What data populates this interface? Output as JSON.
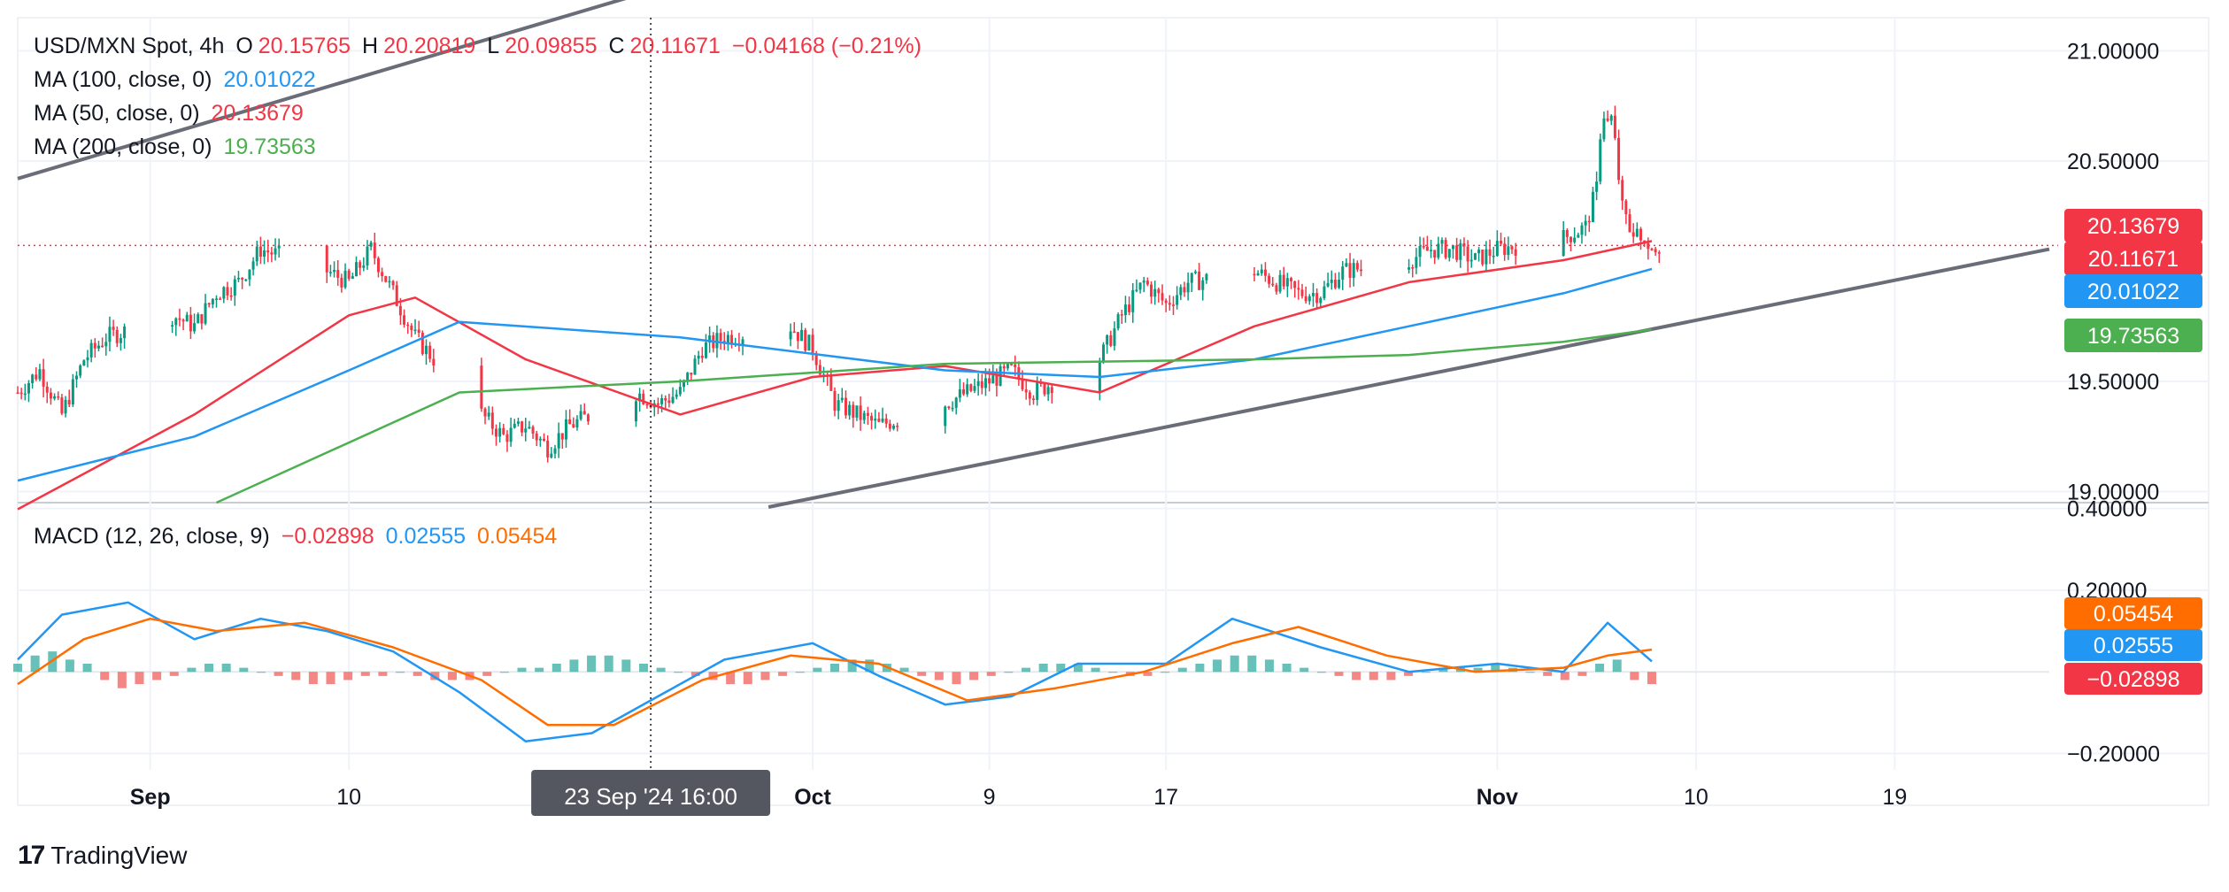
{
  "header": {
    "symbol": "USD/MXN Spot, 4h",
    "open_label": "O",
    "open": "20.15765",
    "high_label": "H",
    "high": "20.20819",
    "low_label": "L",
    "low": "20.09855",
    "close_label": "C",
    "close": "20.11671",
    "change": "−0.04168 (−0.21%)"
  },
  "ma_legend": [
    {
      "label": "MA (100, close, 0)",
      "value": "20.01022",
      "color": "#2196f3"
    },
    {
      "label": "MA (50, close, 0)",
      "value": "20.13679",
      "color": "#f23645"
    },
    {
      "label": "MA (200, close, 0)",
      "value": "19.73563",
      "color": "#4caf50"
    }
  ],
  "macd_legend": {
    "label": "MACD (12, 26, close, 9)",
    "hist": "−0.02898",
    "hist_color": "#f23645",
    "macd": "0.02555",
    "macd_color": "#2196f3",
    "signal": "0.05454",
    "signal_color": "#ff6d00"
  },
  "price_badges": [
    {
      "value": "20.13679",
      "color": "#f23645",
      "price": 20.13679
    },
    {
      "value": "20.11671",
      "color": "#f23645",
      "price": 20.11671
    },
    {
      "value": "20.01022",
      "color": "#2196f3",
      "price": 20.01022
    },
    {
      "value": "19.73563",
      "color": "#4caf50",
      "price": 19.73563
    }
  ],
  "macd_badges": [
    {
      "value": "0.05454",
      "color": "#ff6d00",
      "v": 0.05454
    },
    {
      "value": "0.02555",
      "color": "#2196f3",
      "v": 0.02555
    },
    {
      "value": "−0.02898",
      "color": "#f23645",
      "v": -0.02898
    }
  ],
  "crosshair_label": "23 Sep '24   16:00",
  "footer": {
    "brand": "TradingView",
    "mark": "17"
  },
  "colors": {
    "up": "#089981",
    "down": "#f23645",
    "grid": "#f0f3fa",
    "trend": "#6a6d78"
  },
  "chart_data": {
    "type": "candlestick",
    "price_axis": {
      "range": [
        18.95,
        21.15
      ],
      "ticks": [
        {
          "v": 21.0,
          "label": "21.00000"
        },
        {
          "v": 20.5,
          "label": "20.50000"
        },
        {
          "v": 19.5,
          "label": "19.50000"
        },
        {
          "v": 19.0,
          "label": "19.00000"
        }
      ]
    },
    "macd_axis": {
      "range": [
        -0.24,
        0.41
      ],
      "ticks": [
        {
          "v": 0.4,
          "label": "0.40000"
        },
        {
          "v": 0.2,
          "label": "0.20000"
        },
        {
          "v": -0.2,
          "label": "−0.20000"
        }
      ]
    },
    "time_axis": {
      "start": "2024-08-26",
      "end": "2024-11-26",
      "ticks": [
        {
          "date": "2024-09-01",
          "label": "Sep",
          "bold": true
        },
        {
          "date": "2024-09-10",
          "label": "10",
          "bold": false
        },
        {
          "date": "2024-10-01",
          "label": "Oct",
          "bold": true
        },
        {
          "date": "2024-10-09",
          "label": "9",
          "bold": false
        },
        {
          "date": "2024-10-17",
          "label": "17",
          "bold": false
        },
        {
          "date": "2024-11-01",
          "label": "Nov",
          "bold": true
        },
        {
          "date": "2024-11-10",
          "label": "10",
          "bold": false
        },
        {
          "date": "2024-11-19",
          "label": "19",
          "bold": false
        }
      ]
    },
    "close_path": [
      [
        "2024-08-26",
        19.45
      ],
      [
        "2024-08-27",
        19.55
      ],
      [
        "2024-08-28",
        19.35
      ],
      [
        "2024-08-29",
        19.6
      ],
      [
        "2024-08-30",
        19.7
      ],
      [
        "2024-09-02",
        19.8
      ],
      [
        "2024-09-03",
        19.75
      ],
      [
        "2024-09-04",
        19.9
      ],
      [
        "2024-09-05",
        19.95
      ],
      [
        "2024-09-06",
        20.1
      ],
      [
        "2024-09-09",
        20.0
      ],
      [
        "2024-09-10",
        19.95
      ],
      [
        "2024-09-11",
        20.1
      ],
      [
        "2024-09-12",
        19.9
      ],
      [
        "2024-09-13",
        19.7
      ],
      [
        "2024-09-16",
        19.35
      ],
      [
        "2024-09-17",
        19.25
      ],
      [
        "2024-09-18",
        19.3
      ],
      [
        "2024-09-19",
        19.2
      ],
      [
        "2024-09-20",
        19.3
      ],
      [
        "2024-09-23",
        19.45
      ],
      [
        "2024-09-24",
        19.4
      ],
      [
        "2024-09-25",
        19.45
      ],
      [
        "2024-09-26",
        19.65
      ],
      [
        "2024-09-27",
        19.7
      ],
      [
        "2024-09-30",
        19.75
      ],
      [
        "2024-10-01",
        19.65
      ],
      [
        "2024-10-02",
        19.4
      ],
      [
        "2024-10-03",
        19.35
      ],
      [
        "2024-10-04",
        19.3
      ],
      [
        "2024-10-07",
        19.4
      ],
      [
        "2024-10-08",
        19.45
      ],
      [
        "2024-10-09",
        19.5
      ],
      [
        "2024-10-10",
        19.55
      ],
      [
        "2024-10-11",
        19.45
      ],
      [
        "2024-10-14",
        19.6
      ],
      [
        "2024-10-15",
        19.8
      ],
      [
        "2024-10-16",
        19.95
      ],
      [
        "2024-10-17",
        19.85
      ],
      [
        "2024-10-18",
        19.95
      ],
      [
        "2024-10-21",
        20.0
      ],
      [
        "2024-10-22",
        19.95
      ],
      [
        "2024-10-23",
        19.9
      ],
      [
        "2024-10-24",
        19.9
      ],
      [
        "2024-10-25",
        20.0
      ],
      [
        "2024-10-28",
        20.05
      ],
      [
        "2024-10-29",
        20.1
      ],
      [
        "2024-10-30",
        20.1
      ],
      [
        "2024-10-31",
        20.05
      ],
      [
        "2024-11-01",
        20.1
      ],
      [
        "2024-11-04",
        20.15
      ],
      [
        "2024-11-05",
        20.2
      ],
      [
        "2024-11-06",
        20.55
      ],
      [
        "2024-11-07",
        20.2
      ],
      [
        "2024-11-08",
        20.12
      ]
    ],
    "ma_series": [
      {
        "color": "#f23645",
        "points": [
          [
            "2024-08-26",
            18.92
          ],
          [
            "2024-09-03",
            19.35
          ],
          [
            "2024-09-10",
            19.8
          ],
          [
            "2024-09-13",
            19.88
          ],
          [
            "2024-09-18",
            19.6
          ],
          [
            "2024-09-25",
            19.35
          ],
          [
            "2024-10-01",
            19.52
          ],
          [
            "2024-10-07",
            19.57
          ],
          [
            "2024-10-14",
            19.45
          ],
          [
            "2024-10-21",
            19.75
          ],
          [
            "2024-10-28",
            19.95
          ],
          [
            "2024-11-04",
            20.05
          ],
          [
            "2024-11-08",
            20.13679
          ]
        ]
      },
      {
        "color": "#2196f3",
        "points": [
          [
            "2024-08-26",
            19.05
          ],
          [
            "2024-09-03",
            19.25
          ],
          [
            "2024-09-10",
            19.55
          ],
          [
            "2024-09-15",
            19.77
          ],
          [
            "2024-09-25",
            19.7
          ],
          [
            "2024-10-07",
            19.55
          ],
          [
            "2024-10-14",
            19.52
          ],
          [
            "2024-10-21",
            19.6
          ],
          [
            "2024-10-28",
            19.75
          ],
          [
            "2024-11-04",
            19.9
          ],
          [
            "2024-11-08",
            20.01022
          ]
        ]
      },
      {
        "color": "#4caf50",
        "points": [
          [
            "2024-09-04",
            18.95
          ],
          [
            "2024-09-15",
            19.45
          ],
          [
            "2024-09-25",
            19.5
          ],
          [
            "2024-10-07",
            19.58
          ],
          [
            "2024-10-21",
            19.6
          ],
          [
            "2024-10-28",
            19.62
          ],
          [
            "2024-11-04",
            19.68
          ],
          [
            "2024-11-08",
            19.73563
          ]
        ]
      }
    ],
    "macd_lines": [
      {
        "color": "#2196f3",
        "points": [
          [
            "2024-08-26",
            0.03
          ],
          [
            "2024-08-28",
            0.14
          ],
          [
            "2024-08-31",
            0.17
          ],
          [
            "2024-09-03",
            0.08
          ],
          [
            "2024-09-06",
            0.13
          ],
          [
            "2024-09-09",
            0.1
          ],
          [
            "2024-09-12",
            0.05
          ],
          [
            "2024-09-15",
            -0.05
          ],
          [
            "2024-09-18",
            -0.17
          ],
          [
            "2024-09-21",
            -0.15
          ],
          [
            "2024-09-24",
            -0.06
          ],
          [
            "2024-09-27",
            0.03
          ],
          [
            "2024-10-01",
            0.07
          ],
          [
            "2024-10-04",
            -0.01
          ],
          [
            "2024-10-07",
            -0.08
          ],
          [
            "2024-10-10",
            -0.06
          ],
          [
            "2024-10-13",
            0.02
          ],
          [
            "2024-10-17",
            0.02
          ],
          [
            "2024-10-20",
            0.13
          ],
          [
            "2024-10-24",
            0.06
          ],
          [
            "2024-10-28",
            0.0
          ],
          [
            "2024-11-01",
            0.02
          ],
          [
            "2024-11-04",
            0.0
          ],
          [
            "2024-11-06",
            0.12
          ],
          [
            "2024-11-08",
            0.02555
          ]
        ]
      },
      {
        "color": "#ff6d00",
        "points": [
          [
            "2024-08-26",
            -0.03
          ],
          [
            "2024-08-29",
            0.08
          ],
          [
            "2024-09-01",
            0.13
          ],
          [
            "2024-09-04",
            0.1
          ],
          [
            "2024-09-08",
            0.12
          ],
          [
            "2024-09-12",
            0.06
          ],
          [
            "2024-09-16",
            -0.02
          ],
          [
            "2024-09-19",
            -0.13
          ],
          [
            "2024-09-22",
            -0.13
          ],
          [
            "2024-09-26",
            -0.02
          ],
          [
            "2024-09-30",
            0.04
          ],
          [
            "2024-10-04",
            0.02
          ],
          [
            "2024-10-08",
            -0.07
          ],
          [
            "2024-10-12",
            -0.04
          ],
          [
            "2024-10-16",
            0.0
          ],
          [
            "2024-10-20",
            0.07
          ],
          [
            "2024-10-23",
            0.11
          ],
          [
            "2024-10-27",
            0.04
          ],
          [
            "2024-10-31",
            0.0
          ],
          [
            "2024-11-04",
            0.01
          ],
          [
            "2024-11-06",
            0.04
          ],
          [
            "2024-11-08",
            0.05454
          ]
        ]
      }
    ],
    "macd_hist": [
      0.02,
      0.04,
      0.05,
      0.03,
      0.02,
      -0.02,
      -0.04,
      -0.03,
      -0.02,
      -0.01,
      0.01,
      0.02,
      0.02,
      0.01,
      0.0,
      -0.01,
      -0.02,
      -0.03,
      -0.03,
      -0.02,
      -0.01,
      -0.01,
      0.0,
      -0.01,
      -0.02,
      -0.02,
      -0.02,
      -0.01,
      0.0,
      0.01,
      0.01,
      0.02,
      0.03,
      0.04,
      0.04,
      0.03,
      0.02,
      0.01,
      0.0,
      -0.01,
      -0.02,
      -0.03,
      -0.03,
      -0.02,
      -0.01,
      0.0,
      0.01,
      0.02,
      0.03,
      0.03,
      0.02,
      0.01,
      -0.01,
      -0.02,
      -0.03,
      -0.02,
      -0.01,
      0.0,
      0.01,
      0.02,
      0.02,
      0.02,
      0.01,
      0.0,
      -0.01,
      -0.01,
      0.0,
      0.01,
      0.02,
      0.03,
      0.04,
      0.04,
      0.03,
      0.02,
      0.01,
      0.0,
      -0.01,
      -0.02,
      -0.02,
      -0.02,
      -0.01,
      0.0,
      0.01,
      0.01,
      0.01,
      0.02,
      0.01,
      0.0,
      -0.01,
      -0.02,
      -0.01,
      0.02,
      0.03,
      -0.02,
      -0.03
    ],
    "trend_lines": [
      {
        "from": [
          "2024-08-26",
          20.42
        ],
        "to": [
          "2024-09-29",
          21.43
        ]
      },
      {
        "from": [
          "2024-09-29",
          18.93
        ],
        "to": [
          "2024-11-26",
          20.1
        ]
      }
    ],
    "crosshair_date": "2024-09-23T16:00"
  }
}
